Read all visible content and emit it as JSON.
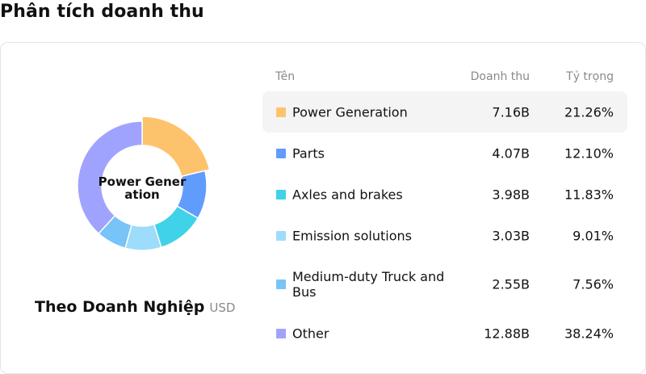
{
  "page": {
    "title": "Phân tích doanh thu"
  },
  "chart": {
    "center_label": "Power Generation",
    "caption": "Theo Doanh Nghiệp",
    "unit": "USD"
  },
  "table": {
    "headers": {
      "name": "Tên",
      "revenue": "Doanh thu",
      "share": "Tỷ trọng"
    }
  },
  "chart_data": {
    "type": "pie",
    "donut": true,
    "highlighted": "Power Generation",
    "categories": [
      "Power Generation",
      "Parts",
      "Axles and brakes",
      "Emission solutions",
      "Medium-duty Truck and Bus",
      "Other"
    ],
    "values": [
      21.26,
      12.1,
      11.83,
      9.01,
      7.56,
      38.24
    ],
    "series": [
      {
        "label": "Power Generation",
        "revenue": "7.16B",
        "share": "21.26%",
        "value": 21.26,
        "color": "#fdc36c"
      },
      {
        "label": "Parts",
        "revenue": "4.07B",
        "share": "12.10%",
        "value": 12.1,
        "color": "#609cfb"
      },
      {
        "label": "Axles and brakes",
        "revenue": "3.98B",
        "share": "11.83%",
        "value": 11.83,
        "color": "#40d2e8"
      },
      {
        "label": "Emission solutions",
        "revenue": "3.03B",
        "share": "9.01%",
        "value": 9.01,
        "color": "#9ddcfb"
      },
      {
        "label": "Medium-duty Truck and Bus",
        "revenue": "2.55B",
        "share": "7.56%",
        "value": 7.56,
        "color": "#78c3f7"
      },
      {
        "label": "Other",
        "revenue": "12.88B",
        "share": "38.24%",
        "value": 38.24,
        "color": "#a0a3fd"
      }
    ]
  }
}
